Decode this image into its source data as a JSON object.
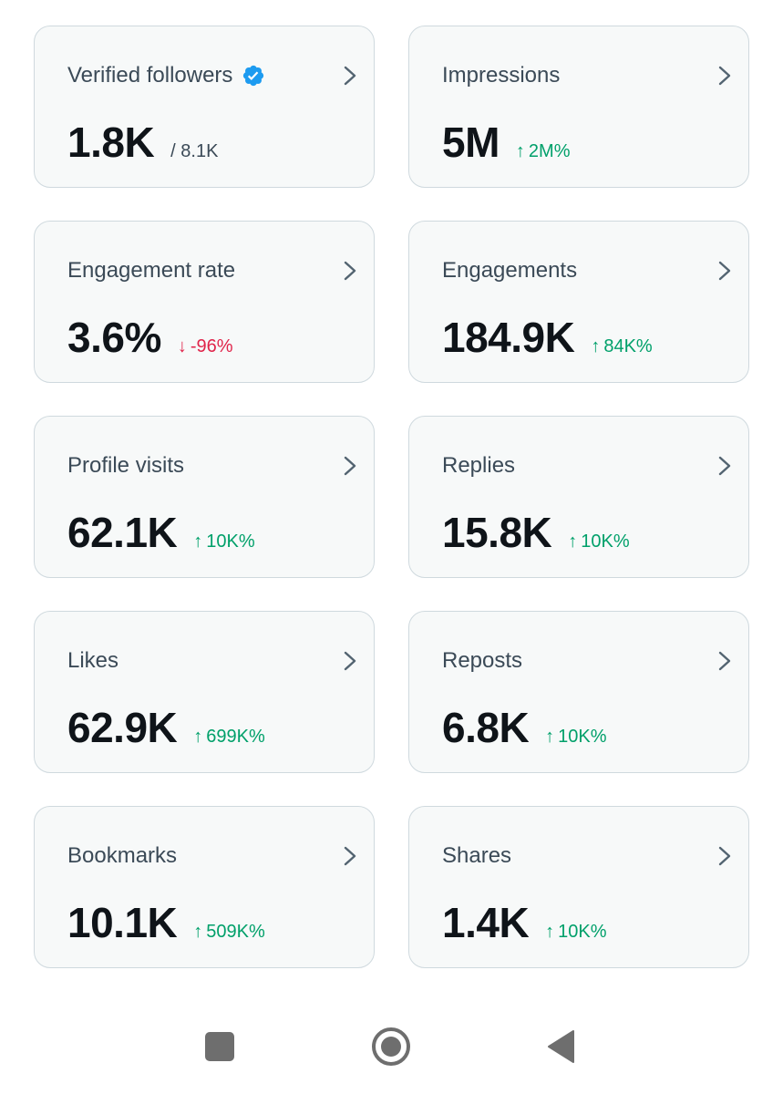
{
  "cards": [
    {
      "title": "Verified followers",
      "value": "1.8K",
      "sub": "/ 8.1K",
      "verified": true
    },
    {
      "title": "Impressions",
      "value": "5M",
      "delta": "2M%",
      "direction": "up"
    },
    {
      "title": "Engagement rate",
      "value": "3.6%",
      "delta": "-96%",
      "direction": "down"
    },
    {
      "title": "Engagements",
      "value": "184.9K",
      "delta": "84K%",
      "direction": "up"
    },
    {
      "title": "Profile visits",
      "value": "62.1K",
      "delta": "10K%",
      "direction": "up"
    },
    {
      "title": "Replies",
      "value": "15.8K",
      "delta": "10K%",
      "direction": "up"
    },
    {
      "title": "Likes",
      "value": "62.9K",
      "delta": "699K%",
      "direction": "up"
    },
    {
      "title": "Reposts",
      "value": "6.8K",
      "delta": "10K%",
      "direction": "up"
    },
    {
      "title": "Bookmarks",
      "value": "10.1K",
      "delta": "509K%",
      "direction": "up"
    },
    {
      "title": "Shares",
      "value": "1.4K",
      "delta": "10K%",
      "direction": "up"
    }
  ],
  "icons": {
    "chevron": "chevron-right-icon",
    "verified": "verified-badge-icon",
    "arrow_up": "arrow-up-icon",
    "arrow_down": "arrow-down-icon",
    "nav_recents": "square-icon",
    "nav_home": "circle-home-icon",
    "nav_back": "triangle-back-icon"
  },
  "colors": {
    "up": "#00a06a",
    "down": "#e0244a",
    "verified": "#1d9bf0",
    "card_bg": "#f7f9f9",
    "card_border": "#cfd9de"
  }
}
